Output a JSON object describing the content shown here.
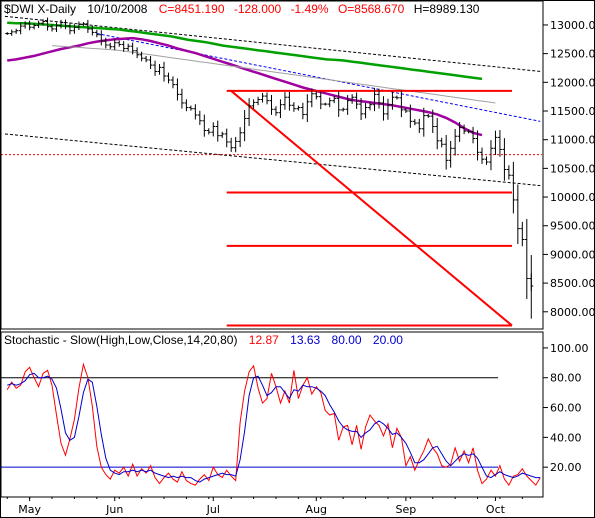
{
  "header": {
    "symbol": "$DWI X-Daily",
    "date": "10/10/2008",
    "close": "C=8451.190",
    "change": "-128.000",
    "change_pct": "-1.49%",
    "open": "O=8568.670",
    "high": "H=8989.130"
  },
  "stoch_header": {
    "label": "Stochastic - Slow(High,Low,Close,14,20,80)",
    "k": "12.87",
    "d": "13.63",
    "upper": "80.00",
    "lower": "20.00"
  },
  "colors": {
    "background": "#ffffff",
    "border": "#000000",
    "price_bars": "#000000",
    "ma_green": "#00a000",
    "ma_purple": "#a000a0",
    "ma_gray": "#a0a0a0",
    "trend_red": "#ff0000",
    "dashed_blue": "#0000ff",
    "stoch_k": "#ff0000",
    "stoch_d": "#0000cc",
    "header_red": "#ff0000",
    "header_blue": "#0000cc",
    "header_black": "#000000"
  },
  "chart_data": [
    {
      "type": "ohlc",
      "ylim": [
        7700,
        13400
      ],
      "yticks": [
        "13000.00",
        "12500.00",
        "12000.00",
        "11500.00",
        "11000.00",
        "10500.00",
        "10000.00",
        "9500.00",
        "9000.00",
        "8500.00",
        "8000.00"
      ],
      "ytick_values": [
        13000,
        12500,
        12000,
        11500,
        11000,
        10500,
        10000,
        9500,
        9000,
        8500,
        8000
      ],
      "xticks": [
        "May",
        "Jun",
        "Jul",
        "Aug",
        "Sep",
        "Oct"
      ],
      "xtick_days": [
        5,
        24,
        46,
        69,
        89,
        109
      ],
      "n_days": 119,
      "horizontal_levels": [
        11850,
        10080,
        9150,
        7760
      ],
      "dotted_level": 10740,
      "red_diagonal": {
        "from": [
          50,
          11850
        ],
        "to": [
          119,
          7760
        ]
      },
      "black_dashed_channel": [
        {
          "from": [
            0,
            13150
          ],
          "to": [
            119,
            12190
          ]
        },
        {
          "from": [
            0,
            11100
          ],
          "to": [
            119,
            10200
          ]
        }
      ],
      "blue_dashed": {
        "from": [
          20,
          12850
        ],
        "to": [
          119,
          11320
        ]
      },
      "moving_averages": [
        {
          "key": "green",
          "values": [
            13040,
            13030,
            13030,
            13020,
            13010,
            13000,
            12990,
            12980,
            12970,
            12960,
            12950,
            12940,
            12930,
            12920,
            12900,
            12880,
            12860,
            12840,
            12820,
            12800,
            12770,
            12740,
            12720,
            12700,
            12670,
            12640,
            12620,
            12600,
            12580,
            12560,
            12540,
            12520,
            12500,
            12480,
            12460,
            12440,
            12420,
            12400,
            12390,
            12380,
            12360,
            12340,
            12320,
            12300,
            12280,
            12260,
            12240,
            12220,
            12200,
            12180,
            12160,
            12140,
            12120,
            12100,
            12080,
            12060
          ]
        },
        {
          "key": "purple",
          "values": [
            12380,
            12400,
            12430,
            12460,
            12500,
            12540,
            12580,
            12610,
            12640,
            12680,
            12710,
            12730,
            12750,
            12760,
            12770,
            12750,
            12720,
            12680,
            12640,
            12590,
            12550,
            12510,
            12460,
            12410,
            12360,
            12310,
            12260,
            12210,
            12160,
            12110,
            12060,
            12010,
            11960,
            11910,
            11870,
            11830,
            11790,
            11750,
            11710,
            11680,
            11660,
            11640,
            11620,
            11600,
            11570,
            11540,
            11510,
            11480,
            11440,
            11380,
            11300,
            11200,
            11120,
            11080
          ]
        },
        {
          "key": "gray",
          "values": [
            12640,
            12630,
            12620,
            12610,
            12600,
            12590,
            12580,
            12570,
            12560,
            12540,
            12520,
            12500,
            12480,
            12460,
            12440,
            12420,
            12400,
            12380,
            12360,
            12340,
            12320,
            12300,
            12280,
            12260,
            12240,
            12220,
            12200,
            12180,
            12160,
            12140,
            12120,
            12100,
            12080,
            12060,
            12040,
            12020,
            12000,
            11980,
            11960,
            11940,
            11920,
            11900,
            11880,
            11860,
            11840,
            11820,
            11800,
            11780,
            11760,
            11740,
            11720,
            11700,
            11680,
            11660,
            11640
          ]
        }
      ],
      "closes": [
        12850,
        12880,
        12900,
        12980,
        13020,
        12960,
        12990,
        13030,
        13060,
        12970,
        12930,
        12990,
        13040,
        12980,
        12900,
        12960,
        13010,
        13020,
        12930,
        12870,
        12830,
        12720,
        12650,
        12620,
        12690,
        12660,
        12590,
        12630,
        12550,
        12480,
        12420,
        12390,
        12300,
        12190,
        12260,
        12110,
        12040,
        11960,
        11790,
        11640,
        11560,
        11540,
        11430,
        11330,
        11160,
        11130,
        11230,
        11070,
        11100,
        10960,
        10860,
        10970,
        11120,
        11370,
        11590,
        11650,
        11700,
        11760,
        11680,
        11530,
        11470,
        11610,
        11740,
        11600,
        11540,
        11560,
        11440,
        11660,
        11800,
        11750,
        11620,
        11620,
        11680,
        11720,
        11520,
        11530,
        11680,
        11740,
        11620,
        11450,
        11560,
        11610,
        11790,
        11640,
        11450,
        11610,
        11740,
        11730,
        11520,
        11500,
        11320,
        11290,
        11190,
        11420,
        11410,
        11230,
        10980,
        10920,
        10640,
        10850,
        11060,
        11210,
        11150,
        11140,
        11020,
        10780,
        10660,
        10610,
        10850,
        11040,
        10830,
        10480,
        10380,
        9950,
        9450,
        9260,
        8580,
        8450
      ]
    },
    {
      "type": "line",
      "ylim": [
        0,
        110
      ],
      "yticks": [
        "100.00",
        "80.00",
        "60.00",
        "40.00",
        "20.00"
      ],
      "ytick_values": [
        100,
        80,
        60,
        40,
        20
      ],
      "xticks": [
        "May",
        "Jun",
        "Jul",
        "Aug",
        "Sep",
        "Oct"
      ],
      "reference_levels": [
        80,
        20
      ],
      "series": [
        {
          "key": "k",
          "values": [
            72,
            77,
            73,
            75,
            84,
            87,
            80,
            74,
            83,
            85,
            75,
            55,
            36,
            28,
            39,
            52,
            73,
            89,
            80,
            61,
            34,
            20,
            15,
            12,
            18,
            16,
            20,
            14,
            22,
            14,
            19,
            16,
            21,
            13,
            9,
            13,
            16,
            12,
            10,
            17,
            11,
            9,
            8,
            12,
            15,
            11,
            20,
            15,
            13,
            18,
            14,
            11,
            50,
            71,
            84,
            88,
            73,
            63,
            66,
            83,
            74,
            63,
            71,
            63,
            85,
            66,
            75,
            80,
            69,
            74,
            70,
            58,
            55,
            56,
            38,
            47,
            48,
            35,
            48,
            32,
            47,
            55,
            51,
            48,
            41,
            49,
            33,
            46,
            40,
            21,
            27,
            18,
            25,
            31,
            39,
            33,
            29,
            21,
            20,
            22,
            33,
            24,
            31,
            23,
            33,
            18,
            9,
            12,
            18,
            14,
            21,
            12,
            8,
            14,
            15,
            19,
            14,
            11,
            8,
            13
          ]
        },
        {
          "key": "d",
          "values": [
            75,
            76,
            75,
            76,
            78,
            82,
            83,
            80,
            80,
            81,
            79,
            73,
            59,
            43,
            38,
            40,
            54,
            70,
            79,
            77,
            61,
            42,
            26,
            18,
            16,
            15,
            17,
            17,
            18,
            17,
            18,
            17,
            18,
            16,
            15,
            14,
            13,
            14,
            13,
            14,
            13,
            13,
            11,
            10,
            12,
            13,
            14,
            15,
            16,
            15,
            15,
            14,
            25,
            44,
            68,
            80,
            81,
            75,
            68,
            70,
            74,
            74,
            70,
            66,
            72,
            71,
            75,
            74,
            74,
            73,
            71,
            68,
            62,
            57,
            51,
            47,
            45,
            44,
            44,
            40,
            43,
            45,
            49,
            51,
            49,
            46,
            42,
            43,
            40,
            36,
            30,
            23,
            23,
            25,
            29,
            33,
            34,
            29,
            24,
            21,
            24,
            27,
            29,
            28,
            29,
            26,
            20,
            14,
            13,
            15,
            17,
            15,
            14,
            13,
            14,
            16,
            15,
            14,
            13,
            13
          ]
        }
      ]
    }
  ]
}
